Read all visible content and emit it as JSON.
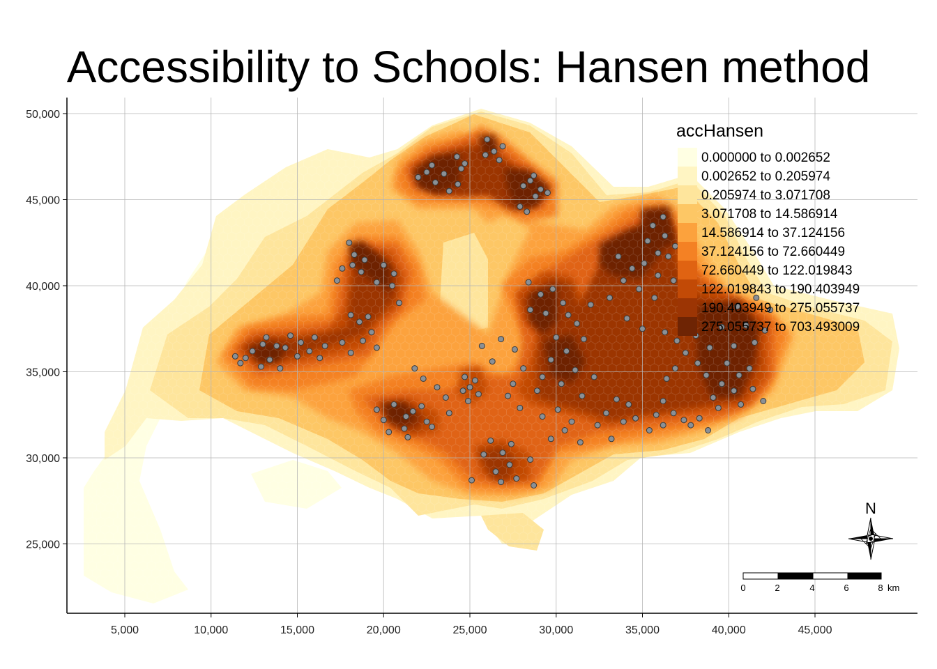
{
  "title": "Accessibility to Schools: Hansen method",
  "axes": {
    "x_ticks": [
      "5,000",
      "10,000",
      "15,000",
      "20,000",
      "25,000",
      "30,000",
      "35,000",
      "40,000",
      "45,000"
    ],
    "y_ticks": [
      "50,000",
      "45,000",
      "40,000",
      "35,000",
      "30,000",
      "25,000"
    ],
    "x_values": [
      5000,
      10000,
      15000,
      20000,
      25000,
      30000,
      35000,
      40000,
      45000
    ],
    "y_values": [
      50000,
      45000,
      40000,
      35000,
      30000,
      25000
    ],
    "grid": true
  },
  "legend": {
    "title": "accHansen",
    "position": "top-right",
    "classes": [
      {
        "label": "0.000000 to 0.002652",
        "color": "#ffffe3"
      },
      {
        "label": "0.002652 to 0.205974",
        "color": "#fff5c3"
      },
      {
        "label": "0.205974 to 3.071708",
        "color": "#fee59c"
      },
      {
        "label": "3.071708 to 14.586914",
        "color": "#fdc765"
      },
      {
        "label": "14.586914 to 37.124156",
        "color": "#fca23d"
      },
      {
        "label": "37.124156 to 72.660449",
        "color": "#f48124"
      },
      {
        "label": "72.660449 to 122.019843",
        "color": "#e06312"
      },
      {
        "label": "122.019843 to 190.403949",
        "color": "#c24a06"
      },
      {
        "label": "190.403949 to 275.055737",
        "color": "#9c3504"
      },
      {
        "label": "275.055737 to 703.493009",
        "color": "#6e2404"
      }
    ]
  },
  "compass": {
    "label": "N"
  },
  "scale_bar": {
    "labels": [
      "0",
      "2",
      "4",
      "6",
      "8"
    ],
    "unit": "km"
  },
  "school_point_color": "#8a9096",
  "schools": [
    [
      24250,
      47500
    ],
    [
      24500,
      46800
    ],
    [
      23500,
      46500
    ],
    [
      22800,
      47000
    ],
    [
      23000,
      46000
    ],
    [
      23800,
      45500
    ],
    [
      22000,
      46300
    ],
    [
      24300,
      45900
    ],
    [
      24700,
      47100
    ],
    [
      22500,
      46600
    ],
    [
      26000,
      48500
    ],
    [
      26400,
      47800
    ],
    [
      26700,
      47300
    ],
    [
      25900,
      47600
    ],
    [
      26900,
      48100
    ],
    [
      28500,
      46100
    ],
    [
      28800,
      45200
    ],
    [
      29100,
      45600
    ],
    [
      27900,
      44600
    ],
    [
      28300,
      44300
    ],
    [
      29500,
      45400
    ],
    [
      28100,
      45800
    ],
    [
      28700,
      46400
    ],
    [
      18000,
      42500
    ],
    [
      18300,
      41800
    ],
    [
      18700,
      40800
    ],
    [
      17600,
      41000
    ],
    [
      18900,
      41500
    ],
    [
      20000,
      41200
    ],
    [
      20600,
      40700
    ],
    [
      20500,
      40000
    ],
    [
      20900,
      39000
    ],
    [
      19600,
      40200
    ],
    [
      17300,
      40300
    ],
    [
      18200,
      41200
    ],
    [
      18100,
      38300
    ],
    [
      18600,
      37900
    ],
    [
      19300,
      37300
    ],
    [
      19600,
      36400
    ],
    [
      18100,
      36100
    ],
    [
      17600,
      36700
    ],
    [
      18800,
      36800
    ],
    [
      19100,
      38200
    ],
    [
      15200,
      36700
    ],
    [
      15700,
      36200
    ],
    [
      16000,
      37000
    ],
    [
      16600,
      36500
    ],
    [
      16300,
      35800
    ],
    [
      15000,
      35900
    ],
    [
      14300,
      36400
    ],
    [
      14600,
      37100
    ],
    [
      12400,
      36200
    ],
    [
      12900,
      35300
    ],
    [
      13400,
      35700
    ],
    [
      13800,
      36500
    ],
    [
      13000,
      36600
    ],
    [
      12000,
      35800
    ],
    [
      11700,
      35500
    ],
    [
      14000,
      35200
    ],
    [
      13200,
      37000
    ],
    [
      11400,
      35900
    ],
    [
      20600,
      33100
    ],
    [
      21300,
      32400
    ],
    [
      21200,
      31700
    ],
    [
      20000,
      32200
    ],
    [
      20300,
      31500
    ],
    [
      21700,
      32700
    ],
    [
      22200,
      33000
    ],
    [
      22800,
      31800
    ],
    [
      21400,
      31200
    ],
    [
      19600,
      32800
    ],
    [
      24700,
      34700
    ],
    [
      25000,
      34100
    ],
    [
      25500,
      33700
    ],
    [
      24600,
      33900
    ],
    [
      25300,
      34500
    ],
    [
      24900,
      33300
    ],
    [
      26200,
      31000
    ],
    [
      26900,
      30300
    ],
    [
      27300,
      29600
    ],
    [
      26500,
      29200
    ],
    [
      27700,
      28800
    ],
    [
      28500,
      29900
    ],
    [
      26800,
      28600
    ],
    [
      27400,
      30800
    ],
    [
      25800,
      30200
    ],
    [
      25100,
      28700
    ],
    [
      28700,
      28400
    ],
    [
      28400,
      40200
    ],
    [
      29100,
      39500
    ],
    [
      29800,
      39800
    ],
    [
      30400,
      39000
    ],
    [
      28500,
      38600
    ],
    [
      29400,
      38400
    ],
    [
      30700,
      38300
    ],
    [
      31200,
      37800
    ],
    [
      32000,
      38900
    ],
    [
      30000,
      37000
    ],
    [
      31600,
      36900
    ],
    [
      30600,
      36200
    ],
    [
      29700,
      35700
    ],
    [
      29200,
      34700
    ],
    [
      30300,
      34300
    ],
    [
      31100,
      35100
    ],
    [
      32200,
      34700
    ],
    [
      31500,
      33600
    ],
    [
      30100,
      32800
    ],
    [
      29200,
      32400
    ],
    [
      32900,
      32600
    ],
    [
      33500,
      33400
    ],
    [
      33900,
      32100
    ],
    [
      34600,
      32300
    ],
    [
      35400,
      31600
    ],
    [
      36200,
      31900
    ],
    [
      35800,
      32500
    ],
    [
      34200,
      33100
    ],
    [
      33200,
      31100
    ],
    [
      36800,
      32600
    ],
    [
      33600,
      41700
    ],
    [
      34400,
      41000
    ],
    [
      35100,
      41300
    ],
    [
      35900,
      40600
    ],
    [
      36500,
      41700
    ],
    [
      36800,
      40300
    ],
    [
      35300,
      42600
    ],
    [
      34800,
      39800
    ],
    [
      35700,
      39300
    ],
    [
      33900,
      40300
    ],
    [
      35600,
      43500
    ],
    [
      36300,
      42900
    ],
    [
      36900,
      42300
    ],
    [
      36200,
      44000
    ],
    [
      35900,
      41900
    ],
    [
      33100,
      39300
    ],
    [
      34100,
      38100
    ],
    [
      35000,
      37500
    ],
    [
      36300,
      37300
    ],
    [
      37000,
      36800
    ],
    [
      38100,
      37100
    ],
    [
      38900,
      36400
    ],
    [
      39600,
      37600
    ],
    [
      40300,
      36500
    ],
    [
      41000,
      37700
    ],
    [
      41500,
      36700
    ],
    [
      42100,
      37400
    ],
    [
      42400,
      38600
    ],
    [
      41600,
      39300
    ],
    [
      40500,
      38800
    ],
    [
      39900,
      35500
    ],
    [
      40600,
      34800
    ],
    [
      41200,
      35200
    ],
    [
      40300,
      33900
    ],
    [
      41400,
      34000
    ],
    [
      42000,
      33300
    ],
    [
      40700,
      33100
    ],
    [
      39600,
      34300
    ],
    [
      38700,
      34800
    ],
    [
      39100,
      33500
    ],
    [
      37800,
      31900
    ],
    [
      38300,
      32300
    ],
    [
      39400,
      32900
    ],
    [
      37400,
      32200
    ],
    [
      38800,
      31600
    ],
    [
      36400,
      34600
    ],
    [
      36900,
      35200
    ],
    [
      38200,
      35500
    ],
    [
      37500,
      36100
    ],
    [
      36200,
      33300
    ],
    [
      28100,
      35200
    ],
    [
      27500,
      34300
    ],
    [
      28900,
      33900
    ],
    [
      27200,
      33600
    ],
    [
      27900,
      32900
    ],
    [
      30500,
      31600
    ],
    [
      31400,
      30900
    ],
    [
      29700,
      31100
    ],
    [
      32400,
      31900
    ],
    [
      30900,
      32100
    ],
    [
      26300,
      35600
    ],
    [
      25700,
      36500
    ],
    [
      26800,
      36900
    ],
    [
      27600,
      36300
    ],
    [
      21800,
      35200
    ],
    [
      22300,
      34600
    ],
    [
      23100,
      34100
    ],
    [
      23600,
      33500
    ],
    [
      22500,
      32100
    ],
    [
      23800,
      32600
    ]
  ]
}
